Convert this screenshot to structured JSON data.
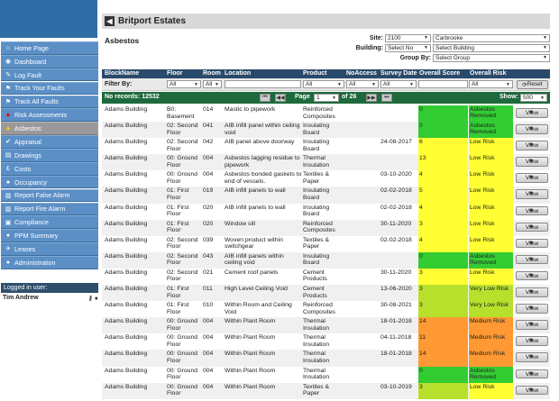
{
  "colors": {
    "nav": "#5b8fc6",
    "nav_active": "#9a9a9a",
    "header": "#2a4a6b",
    "pager": "#1e6a3c",
    "score_green": "#33cc33",
    "score_yellow": "#ffff33",
    "score_orange": "#ff9933",
    "score_light_green": "#b7e02d"
  },
  "sidebar": {
    "items": [
      {
        "label": "Home Page",
        "icon": "home-icon",
        "glyph": "⌂"
      },
      {
        "label": "Dashboard",
        "icon": "dashboard-icon",
        "glyph": "◉"
      },
      {
        "label": "Log Fault",
        "icon": "wrench-icon",
        "glyph": "✎"
      },
      {
        "label": "Track Your Faults",
        "icon": "track-icon",
        "glyph": "⚑"
      },
      {
        "label": "Track All Faults",
        "icon": "track-all-icon",
        "glyph": "⚑"
      },
      {
        "label": "Risk Assessments",
        "icon": "warning-icon",
        "glyph": "▲"
      },
      {
        "label": "Asbestos",
        "icon": "warning-icon",
        "glyph": "▲"
      },
      {
        "label": "Appraisal",
        "icon": "check-icon",
        "glyph": "✔"
      },
      {
        "label": "Drawings",
        "icon": "drawing-icon",
        "glyph": "▤"
      },
      {
        "label": "Costs",
        "icon": "pound-icon",
        "glyph": "£"
      },
      {
        "label": "Occupancy",
        "icon": "occupancy-icon",
        "glyph": "●"
      },
      {
        "label": "Report False Alarm",
        "icon": "report-icon",
        "glyph": "▥"
      },
      {
        "label": "Report Fire Alarm",
        "icon": "report-icon",
        "glyph": "▥"
      },
      {
        "label": "Compliance",
        "icon": "compliance-icon",
        "glyph": "▣"
      },
      {
        "label": "PPM Summary",
        "icon": "ppm-icon",
        "glyph": "●"
      },
      {
        "label": "Leases",
        "icon": "leases-icon",
        "glyph": "✈"
      },
      {
        "label": "Administration",
        "icon": "admin-icon",
        "glyph": "●"
      }
    ],
    "logged_in_label": "Logged in user:",
    "user_name": "Tim Andrew"
  },
  "header": {
    "title": "Britport Estates",
    "page_title": "Asbestos"
  },
  "filters": {
    "site_label": "Site:",
    "site_code": "2100",
    "site_name": "Carbrooke",
    "building_label": "Building:",
    "building_code": "Select No",
    "building_name": "Select Building",
    "group_label": "Group By:",
    "group_value": "Select Group"
  },
  "table": {
    "columns": [
      "BlockName",
      "Floor",
      "Room",
      "Location",
      "Product",
      "NoAccess",
      "Survey Date",
      "Overall Score",
      "Overall Risk"
    ],
    "filter_label": "Filter By:",
    "filter_all": "All",
    "reset_label": "Reset",
    "records_label": "No records: 12532",
    "page_label": "Page",
    "page_value": "1",
    "page_of": "of 26",
    "show_label": "Show:",
    "show_value": "500",
    "view_label": "View",
    "rows": [
      {
        "block": "Adams Building",
        "floor": "B0: Basement",
        "room": "014",
        "location": "Mastic to pipework",
        "product": "Reinforced Composites",
        "date": "",
        "score": "0",
        "risk": "Asbestos Removed",
        "score_color": "#33cc33",
        "risk_color": "#33cc33"
      },
      {
        "block": "Adams Building",
        "floor": "02: Second Floor",
        "room": "041",
        "location": "AIB infill panel within ceiling void",
        "product": "Insulating Board",
        "date": "",
        "score": "0",
        "risk": "Asbestos Removed",
        "score_color": "#33cc33",
        "risk_color": "#33cc33"
      },
      {
        "block": "Adams Building",
        "floor": "02: Second Floor",
        "room": "042",
        "location": "AIB panel above doorway",
        "product": "Insulating Board",
        "date": "24-08-2017",
        "score": "6",
        "risk": "Low Risk",
        "score_color": "#ffff33",
        "risk_color": "#ffff33"
      },
      {
        "block": "Adams Building",
        "floor": "00: Ground Floor",
        "room": "004",
        "location": "Asbestos lagging residue to pipework",
        "product": "Thermal Insulation",
        "date": "",
        "score": "13",
        "risk": "Low Risk",
        "score_color": "#ffff33",
        "risk_color": "#ffff33"
      },
      {
        "block": "Adams Building",
        "floor": "00: Ground Floor",
        "room": "004",
        "location": "Asbestos bonded gaskets to end of vessels.",
        "product": "Textiles & Paper",
        "date": "03-10-2020",
        "score": "4",
        "risk": "Low Risk",
        "score_color": "#ffff33",
        "risk_color": "#ffff33"
      },
      {
        "block": "Adams Building",
        "floor": "01: First Floor",
        "room": "019",
        "location": "AIB infill panels to wall",
        "product": "Insulating Board",
        "date": "02-02-2018",
        "score": "5",
        "risk": "Low Risk",
        "score_color": "#ffff33",
        "risk_color": "#ffff33"
      },
      {
        "block": "Adams Building",
        "floor": "01: First Floor",
        "room": "020",
        "location": "AIB infill panels to wall",
        "product": "Insulating Board",
        "date": "02-02-2018",
        "score": "4",
        "risk": "Low Risk",
        "score_color": "#ffff33",
        "risk_color": "#ffff33"
      },
      {
        "block": "Adams Building",
        "floor": "01: First Floor",
        "room": "020",
        "location": "Window sill",
        "product": "Reinforced Composites",
        "date": "30-11-2020",
        "score": "3",
        "risk": "Low Risk",
        "score_color": "#ffff33",
        "risk_color": "#ffff33"
      },
      {
        "block": "Adams Building",
        "floor": "02: Second Floor",
        "room": "039",
        "location": "Woven product within switchgear",
        "product": "Textiles & Paper",
        "date": "02-02-2018",
        "score": "4",
        "risk": "Low Risk",
        "score_color": "#ffff33",
        "risk_color": "#ffff33"
      },
      {
        "block": "Adams Building",
        "floor": "02: Second Floor",
        "room": "043",
        "location": "AIB infill panels within ceiling void",
        "product": "Insulating Board",
        "date": "",
        "score": "0",
        "risk": "Asbestos Removed",
        "score_color": "#33cc33",
        "risk_color": "#33cc33"
      },
      {
        "block": "Adams Building",
        "floor": "02: Second Floor",
        "room": "021",
        "location": "Cement roof panels",
        "product": "Cement Products",
        "date": "30-11-2020",
        "score": "3",
        "risk": "Low Risk",
        "score_color": "#ffff33",
        "risk_color": "#ffff33"
      },
      {
        "block": "Adams Building",
        "floor": "01: First Floor",
        "room": "011",
        "location": "High Level Ceiling Void",
        "product": "Cement Products",
        "date": "13-06-2020",
        "score": "3",
        "risk": "Very Low Risk",
        "score_color": "#b7e02d",
        "risk_color": "#b7e02d"
      },
      {
        "block": "Adams Building",
        "floor": "01: First Floor",
        "room": "010",
        "location": "Within Room and Ceiling Void",
        "product": "Reinforced Composites",
        "date": "30-08-2021",
        "score": "3",
        "risk": "Very Low Risk",
        "score_color": "#b7e02d",
        "risk_color": "#b7e02d"
      },
      {
        "block": "Adams Building",
        "floor": "00: Ground Floor",
        "room": "004",
        "location": "Within Plant Room",
        "product": "Thermal Insulation",
        "date": "18-01-2018",
        "score": "14",
        "risk": "Medium Risk",
        "score_color": "#ff9933",
        "risk_color": "#ff9933"
      },
      {
        "block": "Adams Building",
        "floor": "00: Ground Floor",
        "room": "004",
        "location": "Within Plant Room",
        "product": "Thermal Insulation",
        "date": "04-11-2018",
        "score": "11",
        "risk": "Medium Risk",
        "score_color": "#ff9933",
        "risk_color": "#ff9933"
      },
      {
        "block": "Adams Building",
        "floor": "00: Ground Floor",
        "room": "004",
        "location": "Within Plant Room",
        "product": "Thermal Insulation",
        "date": "18-01-2018",
        "score": "14",
        "risk": "Medium Risk",
        "score_color": "#ff9933",
        "risk_color": "#ff9933"
      },
      {
        "block": "Adams Building",
        "floor": "00: Ground Floor",
        "room": "004",
        "location": "Within Plant Room",
        "product": "Thermal Insulation",
        "date": "",
        "score": "0",
        "risk": "Asbestos Removed",
        "score_color": "#33cc33",
        "risk_color": "#33cc33"
      },
      {
        "block": "Adams Building",
        "floor": "00: Ground Floor",
        "room": "004",
        "location": "Within Plant Room",
        "product": "Textiles & Paper",
        "date": "03-10-2019",
        "score": "3",
        "risk": "Low Risk",
        "score_color": "#b7e02d",
        "risk_color": "#ffff33"
      }
    ]
  }
}
